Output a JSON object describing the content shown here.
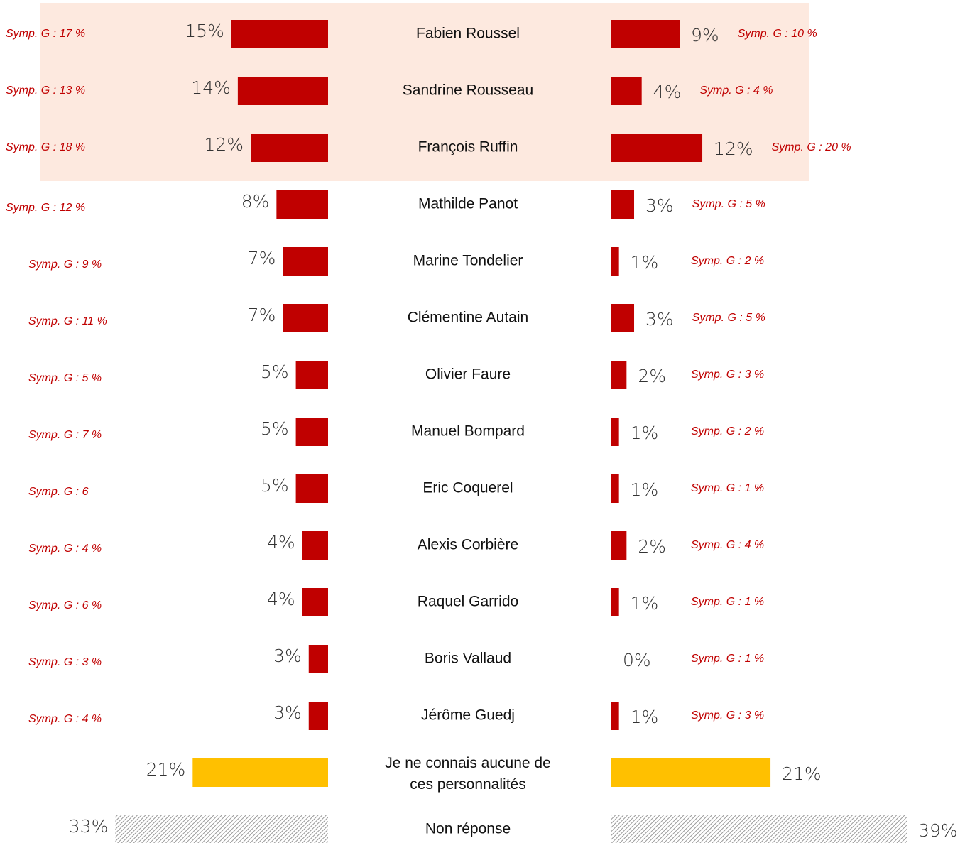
{
  "chart_data": {
    "type": "butterfly-bar",
    "categories": [
      "Fabien Roussel",
      "Sandrine Rousseau",
      "François Ruffin",
      "Mathilde Panot",
      "Marine Tondelier",
      "Clémentine Autain",
      "Olivier Faure",
      "Manuel Bompard",
      "Eric Coquerel",
      "Alexis Corbière",
      "Raquel Garrido",
      "Boris Vallaud",
      "Jérôme Guedj",
      "Je ne connais aucune de ces personnalités",
      "Non réponse"
    ],
    "colors": [
      "#c00000",
      "#c00000",
      "#c00000",
      "#c00000",
      "#c00000",
      "#c00000",
      "#c00000",
      "#c00000",
      "#c00000",
      "#c00000",
      "#c00000",
      "#c00000",
      "#c00000",
      "#ffc000",
      "#a0a0a0"
    ],
    "hatched": [
      14
    ],
    "highlight": [
      0,
      1,
      2
    ],
    "series": [
      {
        "values": [
          15,
          14,
          12,
          8,
          7,
          7,
          5,
          5,
          5,
          4,
          4,
          3,
          3,
          21,
          33
        ],
        "value_labels": [
          "15%",
          "14%",
          "12%",
          "8%",
          "7%",
          "7%",
          "5%",
          "5%",
          "5%",
          "4%",
          "4%",
          "3%",
          "3%",
          "21%",
          "33%"
        ],
        "notes": [
          "Symp. G  : 17 %",
          "Symp. G : 13 %",
          "Symp. G : 18 %",
          "Symp. G : 12 %",
          "Symp. G : 9 %",
          "Symp. G : 11 %",
          "Symp. G : 5 %",
          "Symp. G : 7 %",
          "Symp. G : 6",
          "Symp. G : 4 %",
          "Symp. G : 6 %",
          "Symp. G : 3 %",
          "Symp. G : 4 %",
          null,
          null
        ]
      },
      {
        "values": [
          9,
          4,
          12,
          3,
          1,
          3,
          2,
          1,
          1,
          2,
          1,
          0,
          1,
          21,
          39
        ],
        "value_labels": [
          "9%",
          "4%",
          "12%",
          "3%",
          "1%",
          "3%",
          "2%",
          "1%",
          "1%",
          "2%",
          "1%",
          "0%",
          "1%",
          "21%",
          "39%"
        ],
        "notes": [
          "Symp. G : 10 %",
          "Symp. G : 4 %",
          "Symp. G : 20 %",
          "Symp. G : 5 %",
          "Symp. G : 2 %",
          "Symp. G : 5 %",
          "Symp. G : 3 %",
          "Symp. G : 2 %",
          "Symp. G : 1 %",
          "Symp. G : 4 %",
          "Symp. G : 1 %",
          "Symp. G : 1 %",
          "Symp. G : 3 %",
          null,
          null
        ]
      }
    ]
  }
}
